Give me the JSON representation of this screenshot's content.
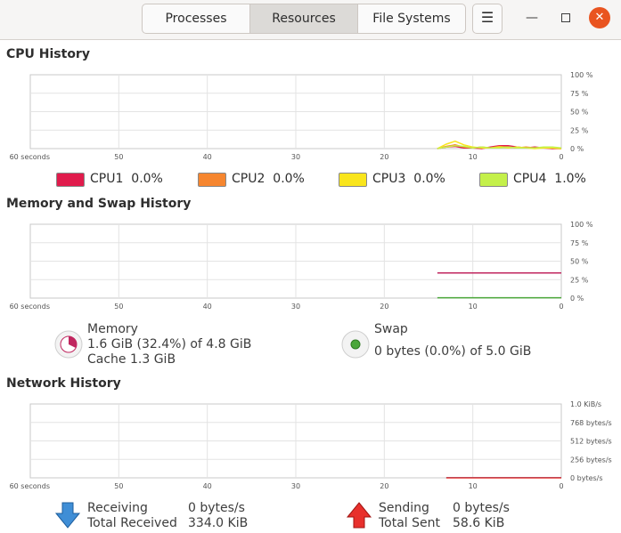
{
  "header": {
    "tabs": [
      {
        "label": "Processes",
        "active": false
      },
      {
        "label": "Resources",
        "active": true
      },
      {
        "label": "File Systems",
        "active": false
      }
    ],
    "menu_icon": "hamburger-menu-icon",
    "minimize_icon": "minimize-icon",
    "maximize_icon": "maximize-icon",
    "close_icon": "close-icon"
  },
  "cpu": {
    "title": "CPU History",
    "legend": [
      {
        "label": "CPU1",
        "value": "0.0%",
        "color": "#e01b4c"
      },
      {
        "label": "CPU2",
        "value": "0.0%",
        "color": "#f6862f"
      },
      {
        "label": "CPU3",
        "value": "0.0%",
        "color": "#f9e51c"
      },
      {
        "label": "CPU4",
        "value": "1.0%",
        "color": "#c4f04a"
      }
    ]
  },
  "memory": {
    "title": "Memory and Swap History",
    "memory_label": "Memory",
    "memory_usage": "1.6 GiB (32.4%) of 4.8 GiB",
    "memory_cache": "Cache 1.3 GiB",
    "memory_color": "#c0265f",
    "swap_label": "Swap",
    "swap_usage": "0 bytes (0.0%) of 5.0 GiB",
    "swap_color": "#4ba73a"
  },
  "network": {
    "title": "Network History",
    "receiving_label": "Receiving",
    "receiving_value": "0 bytes/s",
    "total_received_label": "Total Received",
    "total_received_value": "334.0 KiB",
    "sending_label": "Sending",
    "sending_value": "0 bytes/s",
    "total_sent_label": "Total Sent",
    "total_sent_value": "58.6 KiB",
    "receiving_icon": "down-arrow-icon",
    "sending_icon": "up-arrow-icon",
    "receiving_color": "#3f8ed6",
    "sending_color": "#e8302c"
  },
  "chart_data": [
    {
      "type": "line",
      "name": "cpu-history",
      "x_ticks": [
        "60 seconds",
        "50",
        "40",
        "30",
        "20",
        "10",
        "0"
      ],
      "y_ticks": [
        "100 %",
        "75 %",
        "50 %",
        "25 %",
        "0 %"
      ],
      "ylim": [
        0,
        100
      ],
      "x": [
        14,
        13,
        12,
        11,
        10,
        9,
        8,
        7,
        6,
        5,
        4,
        3,
        2,
        1,
        0
      ],
      "series": [
        {
          "name": "CPU1",
          "color": "#e01b4c",
          "values": [
            0,
            2,
            3,
            1,
            1,
            0,
            2,
            4,
            4,
            2,
            1,
            2,
            1,
            0,
            0
          ]
        },
        {
          "name": "CPU2",
          "color": "#f6862f",
          "values": [
            0,
            3,
            5,
            2,
            1,
            2,
            1,
            3,
            2,
            1,
            2,
            1,
            1,
            1,
            0
          ]
        },
        {
          "name": "CPU3",
          "color": "#f9e51c",
          "values": [
            0,
            6,
            10,
            5,
            2,
            1,
            1,
            2,
            1,
            2,
            1,
            0,
            1,
            1,
            0
          ]
        },
        {
          "name": "CPU4",
          "color": "#c4f04a",
          "values": [
            0,
            2,
            4,
            3,
            1,
            2,
            1,
            1,
            2,
            1,
            1,
            1,
            2,
            2,
            1
          ]
        }
      ]
    },
    {
      "type": "line",
      "name": "memory-swap-history",
      "x_ticks": [
        "60 seconds",
        "50",
        "40",
        "30",
        "20",
        "10",
        "0"
      ],
      "y_ticks": [
        "100 %",
        "75 %",
        "50 %",
        "25 %",
        "0 %"
      ],
      "ylim": [
        0,
        100
      ],
      "x": [
        14,
        0
      ],
      "series": [
        {
          "name": "Memory",
          "color": "#c0265f",
          "values": [
            34,
            34
          ]
        },
        {
          "name": "Swap",
          "color": "#4ba73a",
          "values": [
            0.5,
            0.5
          ]
        }
      ]
    },
    {
      "type": "line",
      "name": "network-history",
      "x_ticks": [
        "60 seconds",
        "50",
        "40",
        "30",
        "20",
        "10",
        "0"
      ],
      "y_ticks": [
        "1.0 KiB/s",
        "768 bytes/s",
        "512 bytes/s",
        "256 bytes/s",
        "0 bytes/s"
      ],
      "ylim": [
        0,
        1024
      ],
      "x": [
        13,
        0
      ],
      "series": [
        {
          "name": "Receiving",
          "color": "#3f8ed6",
          "values": [
            3,
            3
          ]
        },
        {
          "name": "Sending",
          "color": "#e8302c",
          "values": [
            0,
            0
          ]
        }
      ]
    }
  ]
}
